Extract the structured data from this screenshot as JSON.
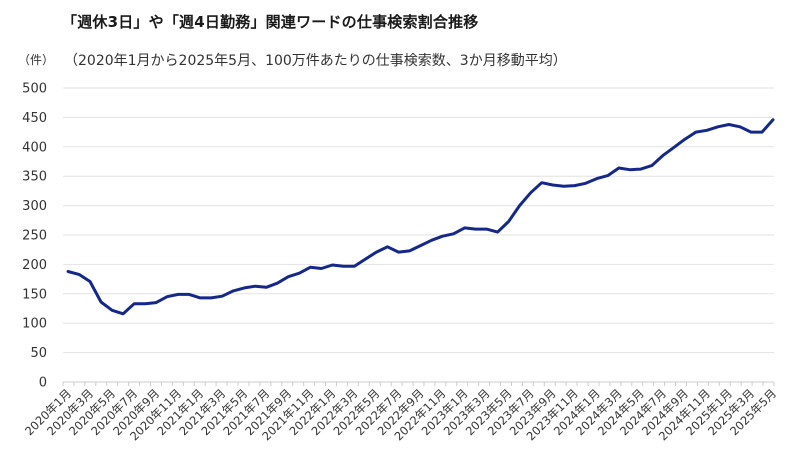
{
  "header": {
    "title": "「週休3日」や「週4日勤務」関連ワードの仕事検索割合推移",
    "unit": "（件）",
    "subtitle": "（2020年1月から2025年5月、100万件あたりの仕事検索数、3か月移動平均）"
  },
  "style": {
    "line_color": "#15288a",
    "grid_color": "#e2e2e2",
    "axis_color": "#cccccc"
  },
  "chart_data": {
    "type": "line",
    "title": "「週休3日」や「週4日勤務」関連ワードの仕事検索割合推移",
    "subtitle": "（2020年1月から2025年5月、100万件あたりの仕事検索数、3か月移動平均）",
    "xlabel": "",
    "ylabel": "（件）",
    "ylim": [
      0,
      500
    ],
    "yticks": [
      0,
      50,
      100,
      150,
      200,
      250,
      300,
      350,
      400,
      450,
      500
    ],
    "grid": true,
    "legend": null,
    "x": [
      "2020年1月",
      "2020年2月",
      "2020年3月",
      "2020年4月",
      "2020年5月",
      "2020年6月",
      "2020年7月",
      "2020年8月",
      "2020年9月",
      "2020年10月",
      "2020年11月",
      "2020年12月",
      "2021年1月",
      "2021年2月",
      "2021年3月",
      "2021年4月",
      "2021年5月",
      "2021年6月",
      "2021年7月",
      "2021年8月",
      "2021年9月",
      "2021年10月",
      "2021年11月",
      "2021年12月",
      "2022年1月",
      "2022年2月",
      "2022年3月",
      "2022年4月",
      "2022年5月",
      "2022年6月",
      "2022年7月",
      "2022年8月",
      "2022年9月",
      "2022年10月",
      "2022年11月",
      "2022年12月",
      "2023年1月",
      "2023年2月",
      "2023年3月",
      "2023年4月",
      "2023年5月",
      "2023年6月",
      "2023年7月",
      "2023年8月",
      "2023年9月",
      "2023年10月",
      "2023年11月",
      "2023年12月",
      "2024年1月",
      "2024年2月",
      "2024年3月",
      "2024年4月",
      "2024年5月",
      "2024年6月",
      "2024年7月",
      "2024年8月",
      "2024年9月",
      "2024年10月",
      "2024年11月",
      "2024年12月",
      "2025年1月",
      "2025年2月",
      "2025年3月",
      "2025年4月",
      "2025年5月"
    ],
    "xtick_labels": [
      "2020年1月",
      "2020年3月",
      "2020年5月",
      "2020年7月",
      "2020年9月",
      "2020年11月",
      "2021年1月",
      "2021年3月",
      "2021年5月",
      "2021年7月",
      "2021年9月",
      "2021年11月",
      "2022年1月",
      "2022年3月",
      "2022年5月",
      "2022年7月",
      "2022年9月",
      "2022年11月",
      "2023年1月",
      "2023年3月",
      "2023年5月",
      "2023年7月",
      "2023年9月",
      "2023年11月",
      "2024年1月",
      "2024年3月",
      "2024年5月",
      "2024年7月",
      "2024年9月",
      "2024年11月",
      "2025年1月",
      "2025年3月",
      "2025年5月"
    ],
    "series": [
      {
        "name": "仕事検索数（100万件あたり）",
        "values": [
          188,
          183,
          171,
          136,
          122,
          116,
          133,
          133,
          135,
          145,
          149,
          149,
          143,
          143,
          146,
          155,
          160,
          163,
          161,
          168,
          179,
          185,
          195,
          193,
          199,
          197,
          197,
          209,
          221,
          230,
          221,
          223,
          232,
          241,
          248,
          252,
          262,
          260,
          260,
          255,
          273,
          300,
          322,
          339,
          335,
          333,
          334,
          338,
          346,
          351,
          364,
          361,
          362,
          368,
          385,
          399,
          413,
          425,
          428,
          434,
          438,
          434,
          425,
          425,
          446
        ]
      }
    ]
  }
}
